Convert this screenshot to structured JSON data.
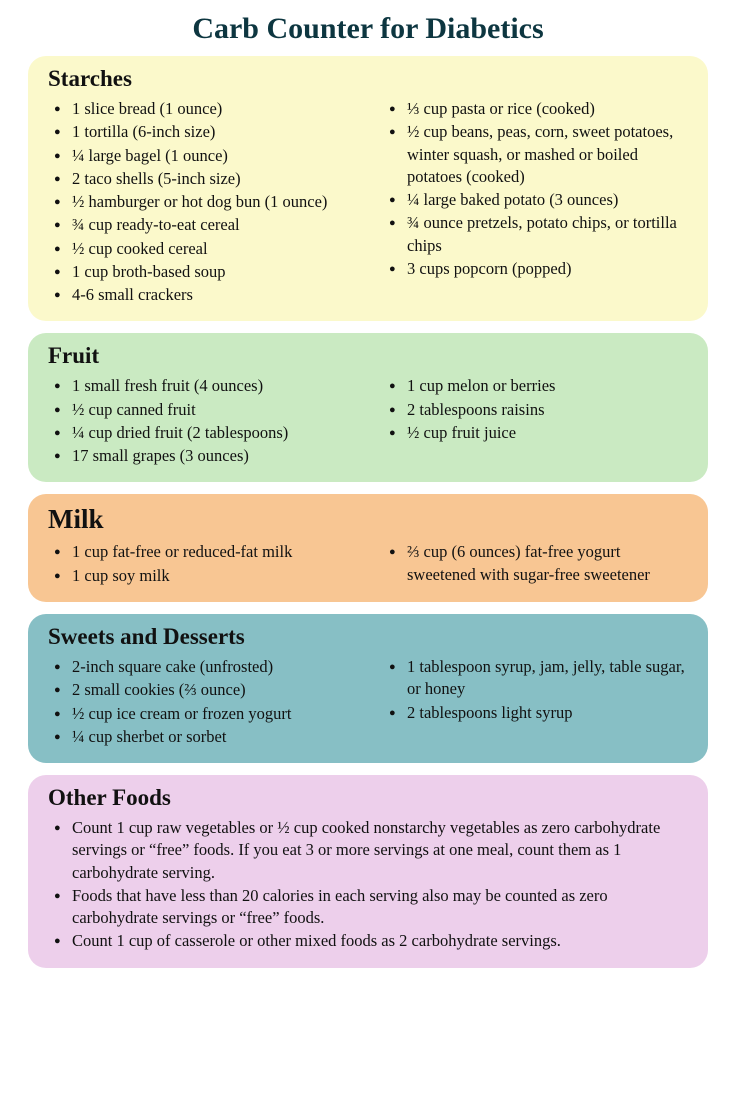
{
  "title": "Carb Counter for Diabetics",
  "colors": {
    "title": "#0d3640",
    "background": "#ffffff"
  },
  "sections": [
    {
      "id": "starches",
      "title": "Starches",
      "background": "#fbf9cb",
      "layout": "two-col",
      "left": [
        "1 slice bread (1 ounce)",
        "1 tortilla (6-inch size)",
        "¼ large bagel (1 ounce)",
        "2 taco shells (5-inch size)",
        "½ hamburger or hot dog bun (1 ounce)",
        "¾ cup ready-to-eat cereal",
        "½ cup cooked cereal",
        "1 cup broth-based soup",
        "4-6 small crackers"
      ],
      "right": [
        "⅓ cup pasta or rice (cooked)",
        "½ cup beans, peas, corn, sweet potatoes, winter squash, or mashed or boiled potatoes (cooked)",
        "¼ large baked potato (3 ounces)",
        "¾ ounce pretzels, potato chips, or tortilla chips",
        "3 cups popcorn (popped)"
      ]
    },
    {
      "id": "fruit",
      "title": "Fruit",
      "background": "#caeac2",
      "layout": "two-col",
      "left": [
        "1 small fresh fruit (4 ounces)",
        "½ cup canned fruit",
        "¼ cup dried fruit (2 tablespoons)",
        "17 small grapes (3 ounces)"
      ],
      "right": [
        "1 cup melon or berries",
        "2 tablespoons raisins",
        "½ cup fruit juice"
      ]
    },
    {
      "id": "milk",
      "title": "Milk",
      "background": "#f8c693",
      "layout": "two-col",
      "title_class": "milk",
      "left": [
        "1 cup fat-free or reduced-fat milk",
        "1 cup soy milk"
      ],
      "right": [
        "⅔ cup (6 ounces) fat-free yogurt sweetened with sugar-free sweetener"
      ]
    },
    {
      "id": "sweets",
      "title": "Sweets and Desserts",
      "background": "#87bfc5",
      "layout": "two-col",
      "left": [
        "2-inch square cake (unfrosted)",
        "2 small cookies (⅔ ounce)",
        "½ cup ice cream or frozen yogurt",
        "¼ cup sherbet or sorbet"
      ],
      "right": [
        "1 tablespoon syrup, jam, jelly, table sugar, or honey",
        "2 tablespoons light syrup"
      ]
    },
    {
      "id": "other",
      "title": "Other Foods",
      "background": "#edcfeb",
      "layout": "one-col",
      "items": [
        "Count 1 cup raw vegetables or ½ cup cooked nonstarchy vegetables as zero carbohydrate servings or “free” foods. If you eat 3 or more servings at one meal, count them as 1 carbohydrate serving.",
        "Foods that have less than 20 calories in each serving also may be counted as zero carbohydrate servings or “free” foods.",
        "Count 1 cup of casserole or other mixed foods as 2 carbohydrate servings."
      ]
    }
  ]
}
